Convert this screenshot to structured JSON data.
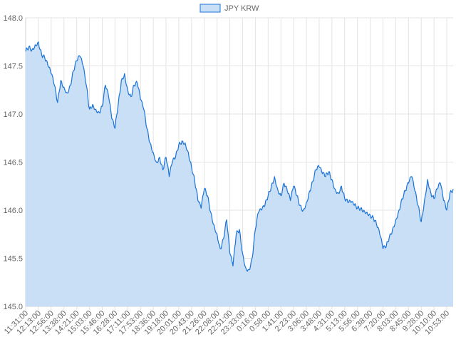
{
  "chart_data": {
    "type": "area",
    "legend": {
      "position": "top",
      "entries": [
        {
          "label": "JPY KRW"
        }
      ]
    },
    "series": [
      {
        "name": "JPY KRW",
        "color": "#1a73d9",
        "fill": "#c9dff5"
      }
    ],
    "ylim": [
      145.0,
      148.0
    ],
    "y_ticks": [
      "145.0",
      "145.5",
      "146.0",
      "146.5",
      "147.0",
      "147.5",
      "148.0"
    ],
    "x_ticks": [
      "11:31:00",
      "12:13:00",
      "12:56:00",
      "13:38:00",
      "14:21:00",
      "15:03:00",
      "15:46:00",
      "16:28:00",
      "17:11:00",
      "17:53:00",
      "18:36:00",
      "19:18:00",
      "20:01:00",
      "20:43:00",
      "21:26:00",
      "22:08:00",
      "22:51:00",
      "23:33:00",
      "0:16:00",
      "0:58:00",
      "1:41:00",
      "2:23:00",
      "3:06:00",
      "3:48:00",
      "4:31:00",
      "5:13:00",
      "5:56:00",
      "6:38:00",
      "7:20:00",
      "8:03:00",
      "8:45:00",
      "9:28:00",
      "10:10:00",
      "10:53:00"
    ],
    "grid": true,
    "points": [
      [
        "11:31:00",
        147.65
      ],
      [
        "11:41:00",
        147.7
      ],
      [
        "11:52:00",
        147.67
      ],
      [
        "12:02:00",
        147.72
      ],
      [
        "12:13:00",
        147.75
      ],
      [
        "12:23:00",
        147.62
      ],
      [
        "12:34:00",
        147.58
      ],
      [
        "12:45:00",
        147.5
      ],
      [
        "12:56:00",
        147.42
      ],
      [
        "13:06:00",
        147.3
      ],
      [
        "13:17:00",
        147.12
      ],
      [
        "13:27:00",
        147.35
      ],
      [
        "13:38:00",
        147.28
      ],
      [
        "13:48:00",
        147.22
      ],
      [
        "13:59:00",
        147.3
      ],
      [
        "14:10:00",
        147.45
      ],
      [
        "14:21:00",
        147.55
      ],
      [
        "14:31:00",
        147.6
      ],
      [
        "14:42:00",
        147.5
      ],
      [
        "14:52:00",
        147.3
      ],
      [
        "15:03:00",
        147.05
      ],
      [
        "15:13:00",
        147.1
      ],
      [
        "15:24:00",
        147.05
      ],
      [
        "15:35:00",
        147.02
      ],
      [
        "15:46:00",
        147.08
      ],
      [
        "15:56:00",
        147.3
      ],
      [
        "16:07:00",
        147.18
      ],
      [
        "16:17:00",
        146.95
      ],
      [
        "16:28:00",
        146.85
      ],
      [
        "16:38:00",
        147.1
      ],
      [
        "16:49:00",
        147.35
      ],
      [
        "17:00:00",
        147.42
      ],
      [
        "17:11:00",
        147.25
      ],
      [
        "17:21:00",
        147.18
      ],
      [
        "17:32:00",
        147.3
      ],
      [
        "17:42:00",
        147.32
      ],
      [
        "17:53:00",
        147.15
      ],
      [
        "18:03:00",
        147.05
      ],
      [
        "18:14:00",
        146.85
      ],
      [
        "18:25:00",
        146.7
      ],
      [
        "18:36:00",
        146.6
      ],
      [
        "18:46:00",
        146.5
      ],
      [
        "18:57:00",
        146.55
      ],
      [
        "19:07:00",
        146.42
      ],
      [
        "19:18:00",
        146.55
      ],
      [
        "19:28:00",
        146.35
      ],
      [
        "19:39:00",
        146.5
      ],
      [
        "19:50:00",
        146.55
      ],
      [
        "20:01:00",
        146.68
      ],
      [
        "20:11:00",
        146.72
      ],
      [
        "20:22:00",
        146.7
      ],
      [
        "20:32:00",
        146.6
      ],
      [
        "20:43:00",
        146.45
      ],
      [
        "20:53:00",
        146.3
      ],
      [
        "21:04:00",
        146.1
      ],
      [
        "21:15:00",
        146.02
      ],
      [
        "21:26:00",
        146.22
      ],
      [
        "21:36:00",
        146.15
      ],
      [
        "21:47:00",
        145.98
      ],
      [
        "21:57:00",
        145.85
      ],
      [
        "22:08:00",
        145.75
      ],
      [
        "22:18:00",
        145.6
      ],
      [
        "22:29:00",
        145.7
      ],
      [
        "22:40:00",
        145.9
      ],
      [
        "22:51:00",
        145.55
      ],
      [
        "23:01:00",
        145.42
      ],
      [
        "23:12:00",
        145.75
      ],
      [
        "23:22:00",
        145.8
      ],
      [
        "23:33:00",
        145.55
      ],
      [
        "23:43:00",
        145.4
      ],
      [
        "23:54:00",
        145.38
      ],
      [
        "0:05:00",
        145.5
      ],
      [
        "0:16:00",
        145.8
      ],
      [
        "0:26:00",
        145.98
      ],
      [
        "0:37:00",
        146.0
      ],
      [
        "0:48:00",
        146.05
      ],
      [
        "0:58:00",
        146.15
      ],
      [
        "1:09:00",
        146.25
      ],
      [
        "1:20:00",
        146.35
      ],
      [
        "1:30:00",
        146.22
      ],
      [
        "1:41:00",
        146.15
      ],
      [
        "1:51:00",
        146.28
      ],
      [
        "2:02:00",
        146.2
      ],
      [
        "2:12:00",
        146.1
      ],
      [
        "2:23:00",
        146.25
      ],
      [
        "2:33:00",
        146.15
      ],
      [
        "2:44:00",
        146.05
      ],
      [
        "2:55:00",
        146.0
      ],
      [
        "3:06:00",
        146.08
      ],
      [
        "3:16:00",
        146.2
      ],
      [
        "3:27:00",
        146.3
      ],
      [
        "3:37:00",
        146.42
      ],
      [
        "3:48:00",
        146.45
      ],
      [
        "3:58:00",
        146.38
      ],
      [
        "4:09:00",
        146.35
      ],
      [
        "4:20:00",
        146.4
      ],
      [
        "4:31:00",
        146.32
      ],
      [
        "4:41:00",
        146.22
      ],
      [
        "4:52:00",
        146.18
      ],
      [
        "5:02:00",
        146.25
      ],
      [
        "5:13:00",
        146.12
      ],
      [
        "5:23:00",
        146.08
      ],
      [
        "5:34:00",
        146.08
      ],
      [
        "5:45:00",
        146.05
      ],
      [
        "5:56:00",
        146.02
      ],
      [
        "6:06:00",
        146.02
      ],
      [
        "6:17:00",
        146.0
      ],
      [
        "6:28:00",
        145.98
      ],
      [
        "6:38:00",
        145.95
      ],
      [
        "6:49:00",
        145.92
      ],
      [
        "7:00:00",
        145.85
      ],
      [
        "7:10:00",
        145.75
      ],
      [
        "7:20:00",
        145.6
      ],
      [
        "7:31:00",
        145.62
      ],
      [
        "7:42:00",
        145.72
      ],
      [
        "7:52:00",
        145.8
      ],
      [
        "8:03:00",
        145.9
      ],
      [
        "8:13:00",
        146.0
      ],
      [
        "8:24:00",
        146.12
      ],
      [
        "8:35:00",
        146.2
      ],
      [
        "8:45:00",
        146.28
      ],
      [
        "8:56:00",
        146.35
      ],
      [
        "9:06:00",
        146.2
      ],
      [
        "9:17:00",
        146.05
      ],
      [
        "9:28:00",
        145.88
      ],
      [
        "9:38:00",
        146.1
      ],
      [
        "9:49:00",
        146.32
      ],
      [
        "9:59:00",
        146.18
      ],
      [
        "10:10:00",
        146.12
      ],
      [
        "10:21:00",
        146.22
      ],
      [
        "10:31:00",
        146.28
      ],
      [
        "10:42:00",
        146.1
      ],
      [
        "10:53:00",
        146.0
      ],
      [
        "11:03:00",
        146.18
      ],
      [
        "11:14:00",
        146.22
      ]
    ]
  }
}
